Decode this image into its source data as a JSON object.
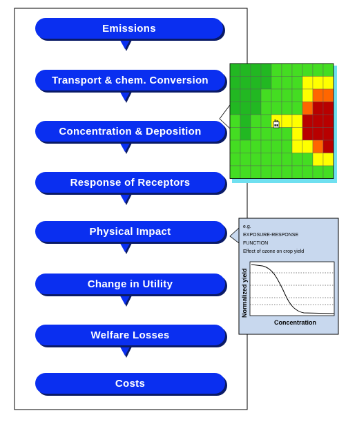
{
  "steps": [
    {
      "label": "Emissions"
    },
    {
      "label": "Transport & chem. Conversion"
    },
    {
      "label": "Concentration & Deposition"
    },
    {
      "label": "Response of Receptors"
    },
    {
      "label": "Physical Impact"
    },
    {
      "label": "Change in Utility"
    },
    {
      "label": "Welfare Losses"
    },
    {
      "label": "Costs"
    }
  ],
  "colors": {
    "step_fill": "#0a2ff0",
    "step_shadow": "#0a1a66",
    "callout_bg": "#c8d8ee",
    "heat_green_dark": "#22b822",
    "heat_green": "#44dd22",
    "heat_yellow": "#ffff00",
    "heat_orange": "#ff6600",
    "heat_red": "#dd1100",
    "heat_darkred": "#b80000"
  },
  "grid_map": {
    "cells": [
      "GGGGgggggg",
      "GGGGgggYYY",
      "GGGggggYRR",
      "GGGggggRDD",
      "gGggYY*DDD",
      "gGggggYDDD",
      "ggggggYYRD",
      "ggggggggYY",
      "gggggggggg"
    ],
    "factory_icon": "factory-icon"
  },
  "callout": {
    "eg": "e.g.",
    "title_line1": "EXPOSURE-RESPONSE",
    "title_line2": "FUNCTION",
    "subtitle": "Effect of ozone on crop yield",
    "ylabel": "Normalized yield",
    "xlabel": "Concentration"
  }
}
